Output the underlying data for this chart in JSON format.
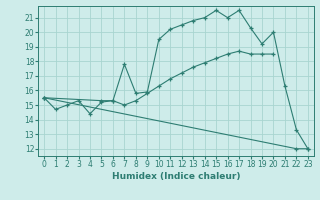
{
  "title": "",
  "xlabel": "Humidex (Indice chaleur)",
  "bg_color": "#ceecea",
  "grid_color": "#a8d5d0",
  "line_color": "#2d7d72",
  "xlim": [
    -0.5,
    23.5
  ],
  "ylim": [
    11.5,
    21.8
  ],
  "yticks": [
    12,
    13,
    14,
    15,
    16,
    17,
    18,
    19,
    20,
    21
  ],
  "xticks": [
    0,
    1,
    2,
    3,
    4,
    5,
    6,
    7,
    8,
    9,
    10,
    11,
    12,
    13,
    14,
    15,
    16,
    17,
    18,
    19,
    20,
    21,
    22,
    23
  ],
  "line1_x": [
    0,
    1,
    2,
    3,
    4,
    5,
    6,
    7,
    8,
    9,
    10,
    11,
    12,
    13,
    14,
    15,
    16,
    17,
    18,
    19,
    20,
    21,
    22,
    23
  ],
  "line1_y": [
    15.5,
    14.7,
    15.0,
    15.3,
    14.4,
    15.2,
    15.3,
    17.8,
    15.8,
    15.9,
    19.5,
    20.2,
    20.5,
    20.8,
    21.0,
    21.5,
    21.0,
    21.5,
    20.3,
    19.2,
    20.0,
    16.3,
    13.3,
    12.0
  ],
  "line2_x": [
    0,
    5,
    6,
    7,
    8,
    9,
    10,
    11,
    12,
    13,
    14,
    15,
    16,
    17,
    18,
    19,
    20
  ],
  "line2_y": [
    15.5,
    15.3,
    15.3,
    15.0,
    15.3,
    15.8,
    16.3,
    16.8,
    17.2,
    17.6,
    17.9,
    18.2,
    18.5,
    18.7,
    18.5,
    18.5,
    18.5
  ],
  "line3_x": [
    0,
    22,
    23
  ],
  "line3_y": [
    15.5,
    12.0,
    12.0
  ]
}
